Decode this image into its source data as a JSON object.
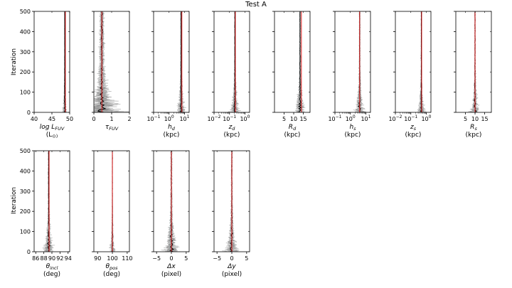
{
  "figure": {
    "title": "Test A",
    "ylabel": "Iteration"
  },
  "colors": {
    "trace": "#8c8c8c",
    "median": "#000000",
    "truth": "#e02020",
    "axis": "#000000"
  },
  "chart_data": [
    {
      "type": "line",
      "name": "log_lfuv",
      "xlabel": "log L",
      "xlabel_sub": "FUV",
      "unit": "(L",
      "unit_suffix": "⊙)",
      "xscale": "linear",
      "xlim": [
        40,
        50
      ],
      "xticks": [
        40,
        45,
        50
      ],
      "xtick_labels": [
        "40",
        "45",
        "50"
      ],
      "xtick_exps": [
        null,
        null,
        null
      ],
      "minor": [],
      "ylim": [
        0,
        500
      ],
      "yticks": [
        0,
        100,
        200,
        300,
        400,
        500
      ],
      "truth": 48.8,
      "center": 48.6,
      "spread": 0.4,
      "row": 0,
      "col": 0
    },
    {
      "type": "line",
      "name": "tau_fuv",
      "xlabel": "τ",
      "xlabel_sub": "FUV",
      "unit": "",
      "unit_suffix": "",
      "xscale": "linear",
      "xlim": [
        0,
        2
      ],
      "xticks": [
        0,
        1,
        2
      ],
      "xtick_labels": [
        "0",
        "1",
        "2"
      ],
      "xtick_exps": [
        null,
        null,
        null
      ],
      "minor": [],
      "ylim": [
        0,
        500
      ],
      "yticks": [
        0,
        100,
        200,
        300,
        400,
        500
      ],
      "truth": 0.45,
      "center": 0.45,
      "spread": 0.7,
      "row": 0,
      "col": 1
    },
    {
      "type": "line",
      "name": "h_d",
      "xlabel": "h",
      "xlabel_sub": "d",
      "unit": "(kpc)",
      "unit_suffix": "",
      "xscale": "log",
      "xlim": [
        -1,
        1.3
      ],
      "xticks": [
        -1,
        0,
        1
      ],
      "xtick_labels": [
        "10",
        "10",
        "10"
      ],
      "xtick_exps": [
        "−1",
        "0",
        "1"
      ],
      "minor": [],
      "ylim": [
        0,
        500
      ],
      "yticks": [
        0,
        100,
        200,
        300,
        400,
        500
      ],
      "truth": 0.83,
      "center": 0.78,
      "spread": 0.2,
      "row": 0,
      "col": 2
    },
    {
      "type": "line",
      "name": "z_d",
      "xlabel": "z",
      "xlabel_sub": "d",
      "unit": "(kpc)",
      "unit_suffix": "",
      "xscale": "log",
      "xlim": [
        -2,
        0.3
      ],
      "xticks": [
        -2,
        -1,
        0
      ],
      "xtick_labels": [
        "10",
        "10",
        "10"
      ],
      "xtick_exps": [
        "−2",
        "−1",
        "0"
      ],
      "minor": [],
      "ylim": [
        0,
        500
      ],
      "yticks": [
        0,
        100,
        200,
        300,
        400,
        500
      ],
      "truth": -0.62,
      "center": -0.65,
      "spread": 0.2,
      "row": 0,
      "col": 3
    },
    {
      "type": "line",
      "name": "R_d",
      "xlabel": "R",
      "xlabel_sub": "d",
      "unit": "(kpc)",
      "unit_suffix": "",
      "xscale": "linear",
      "xlim": [
        0,
        18.5
      ],
      "xticks": [
        5,
        10,
        15
      ],
      "xtick_labels": [
        "5",
        "10",
        "15"
      ],
      "xtick_exps": [
        null,
        null,
        null
      ],
      "minor": [],
      "ylim": [
        0,
        500
      ],
      "yticks": [
        0,
        100,
        200,
        300,
        400,
        500
      ],
      "truth": 14,
      "center": 13.3,
      "spread": 1.8,
      "row": 0,
      "col": 4
    },
    {
      "type": "line",
      "name": "h_s",
      "xlabel": "h",
      "xlabel_sub": "s",
      "unit": "(kpc)",
      "unit_suffix": "",
      "xscale": "log",
      "xlim": [
        -1,
        1.3
      ],
      "xticks": [
        -1,
        0,
        1
      ],
      "xtick_labels": [
        "10",
        "10",
        "10"
      ],
      "xtick_exps": [
        "−1",
        "0",
        "1"
      ],
      "minor": [],
      "ylim": [
        0,
        500
      ],
      "yticks": [
        0,
        100,
        200,
        300,
        400,
        500
      ],
      "truth": 0.6,
      "center": 0.6,
      "spread": 0.2,
      "row": 0,
      "col": 5
    },
    {
      "type": "line",
      "name": "z_s",
      "xlabel": "z",
      "xlabel_sub": "s",
      "unit": "(kpc)",
      "unit_suffix": "",
      "xscale": "log",
      "xlim": [
        -2,
        0.3
      ],
      "xticks": [
        -2,
        -1,
        0
      ],
      "xtick_labels": [
        "10",
        "10",
        "10"
      ],
      "xtick_exps": [
        "−2",
        "−1",
        "0"
      ],
      "minor": [],
      "ylim": [
        0,
        500
      ],
      "yticks": [
        0,
        100,
        200,
        300,
        400,
        500
      ],
      "truth": -0.3,
      "center": -0.32,
      "spread": 0.15,
      "row": 0,
      "col": 6
    },
    {
      "type": "line",
      "name": "R_s",
      "xlabel": "R",
      "xlabel_sub": "s",
      "unit": "(kpc)",
      "unit_suffix": "",
      "xscale": "linear",
      "xlim": [
        0,
        18.5
      ],
      "xticks": [
        5,
        10,
        15
      ],
      "xtick_labels": [
        "5",
        "10",
        "15"
      ],
      "xtick_exps": [
        null,
        null,
        null
      ],
      "minor": [],
      "ylim": [
        0,
        500
      ],
      "yticks": [
        0,
        100,
        200,
        300,
        400,
        500
      ],
      "truth": 10,
      "center": 10,
      "spread": 1.5,
      "row": 0,
      "col": 7
    },
    {
      "type": "line",
      "name": "theta_incl",
      "xlabel": "θ",
      "xlabel_sub": "incl",
      "unit": "(deg)",
      "unit_suffix": "",
      "xscale": "linear",
      "xlim": [
        85.6,
        94.4
      ],
      "xticks": [
        86,
        88,
        90,
        92,
        94
      ],
      "xtick_labels": [
        "86",
        "88",
        "90",
        "92",
        "94"
      ],
      "xtick_exps": [
        null,
        null,
        null,
        null,
        null
      ],
      "minor": [],
      "ylim": [
        0,
        500
      ],
      "yticks": [
        0,
        100,
        200,
        300,
        400,
        500
      ],
      "truth": 89.3,
      "center": 89.2,
      "spread": 0.9,
      "row": 1,
      "col": 0
    },
    {
      "type": "line",
      "name": "theta_pos",
      "xlabel": "θ",
      "xlabel_sub": "pos",
      "unit": "(deg)",
      "unit_suffix": "",
      "xscale": "linear",
      "xlim": [
        87.5,
        111.5
      ],
      "xticks": [
        90,
        100,
        110
      ],
      "xtick_labels": [
        "90",
        "100",
        "110"
      ],
      "xtick_exps": [
        null,
        null,
        null
      ],
      "minor": [],
      "ylim": [
        0,
        500
      ],
      "yticks": [
        0,
        100,
        200,
        300,
        400,
        500
      ],
      "truth": 100,
      "center": 100,
      "spread": 1.2,
      "row": 1,
      "col": 1
    },
    {
      "type": "line",
      "name": "dx",
      "xlabel": "Δx",
      "xlabel_sub": "",
      "unit": "(pixel)",
      "unit_suffix": "",
      "xscale": "linear",
      "xlim": [
        -6,
        6
      ],
      "xticks": [
        -5,
        0,
        5
      ],
      "xtick_labels": [
        "−5",
        "0",
        "5"
      ],
      "xtick_exps": [
        null,
        null,
        null
      ],
      "minor": [],
      "ylim": [
        0,
        500
      ],
      "yticks": [
        0,
        100,
        200,
        300,
        400,
        500
      ],
      "truth": 0,
      "center": 0,
      "spread": 1.6,
      "row": 1,
      "col": 2
    },
    {
      "type": "line",
      "name": "dy",
      "xlabel": "Δy",
      "xlabel_sub": "",
      "unit": "(pixel)",
      "unit_suffix": "",
      "xscale": "linear",
      "xlim": [
        -6,
        6
      ],
      "xticks": [
        -5,
        0,
        5
      ],
      "xtick_labels": [
        "−5",
        "0",
        "5"
      ],
      "xtick_exps": [
        null,
        null,
        null
      ],
      "minor": [],
      "ylim": [
        0,
        500
      ],
      "yticks": [
        0,
        100,
        200,
        300,
        400,
        500
      ],
      "truth": 0,
      "center": 0,
      "spread": 1.4,
      "row": 1,
      "col": 3
    }
  ]
}
